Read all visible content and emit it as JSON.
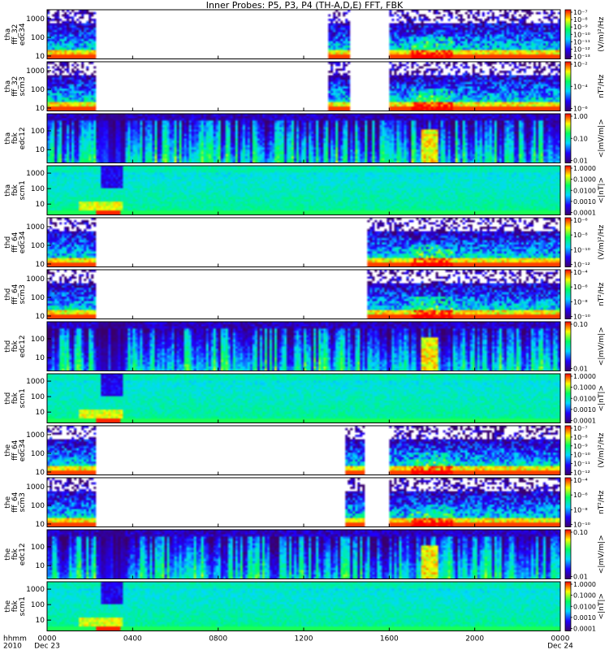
{
  "chart_data": {
    "type": "heatmap",
    "title": "Inner Probes: P5, P3, P4 (TH-A,D,E) FFT, FBK",
    "x_axis": {
      "label_lines": [
        "hhmm",
        "2010"
      ],
      "ticks": [
        {
          "hours": 0,
          "text": "0000",
          "sub": "Dec 23"
        },
        {
          "hours": 4,
          "text": "0400",
          "sub": ""
        },
        {
          "hours": 8,
          "text": "0800",
          "sub": ""
        },
        {
          "hours": 12,
          "text": "1200",
          "sub": ""
        },
        {
          "hours": 16,
          "text": "1600",
          "sub": ""
        },
        {
          "hours": 20,
          "text": "2000",
          "sub": ""
        },
        {
          "hours": 24,
          "text": "0000",
          "sub": "Dec 24"
        }
      ],
      "range_hours": [
        0,
        24
      ]
    },
    "colormap": [
      "#3a006a",
      "#2000ff",
      "#00d8ff",
      "#00ff60",
      "#ffff00",
      "#ff0000"
    ],
    "panels": [
      {
        "ylabel": [
          "tha",
          "fff_32",
          "edc34"
        ],
        "yticks": [
          "1000",
          "100",
          "10"
        ],
        "y_range": [
          7,
          3000
        ],
        "cbar_label": "(V/m)²/Hz",
        "cbar_ticks": [
          "10⁻⁷",
          "10⁻⁸",
          "10⁻⁹",
          "10⁻¹⁰",
          "10⁻¹¹",
          "10⁻¹²",
          "10⁻¹³"
        ],
        "kind": "fft",
        "coverage_hours": [
          [
            0,
            2.3
          ],
          [
            13.1,
            14.2
          ],
          [
            16.0,
            24.0
          ]
        ]
      },
      {
        "ylabel": [
          "tha",
          "fff_32",
          "scm3"
        ],
        "yticks": [
          "1000",
          "100",
          "10"
        ],
        "y_range": [
          7,
          3000
        ],
        "cbar_label": "nT²/Hz",
        "cbar_ticks": [
          "10⁻²",
          "10⁻⁴",
          "10⁻⁶"
        ],
        "kind": "fft",
        "coverage_hours": [
          [
            0,
            2.3
          ],
          [
            13.1,
            14.2
          ],
          [
            16.0,
            24.0
          ]
        ]
      },
      {
        "ylabel": [
          "tha",
          "fbk",
          "edc12"
        ],
        "yticks": [
          "100",
          "10"
        ],
        "y_range": [
          2,
          800
        ],
        "cbar_label": "<|mV/m|>",
        "cbar_ticks": [
          "1.00",
          "0.10",
          "0.01"
        ],
        "kind": "fbk_e",
        "coverage_hours": [
          [
            0,
            24
          ]
        ]
      },
      {
        "ylabel": [
          "tha",
          "fbk",
          "scm1"
        ],
        "yticks": [
          "1000",
          "100",
          "10"
        ],
        "y_range": [
          2,
          3000
        ],
        "cbar_label": "<|nT|>",
        "cbar_ticks": [
          "1.0000",
          "0.1000",
          "0.0100",
          "0.0010",
          "0.0001"
        ],
        "kind": "fbk_b",
        "coverage_hours": [
          [
            0,
            24
          ]
        ]
      },
      {
        "ylabel": [
          "thd",
          "fff_64",
          "edc34"
        ],
        "yticks": [
          "1000",
          "100",
          "10"
        ],
        "y_range": [
          7,
          3000
        ],
        "cbar_label": "(V/m)²/Hz",
        "cbar_ticks": [
          "10⁻⁶",
          "10⁻⁸",
          "10⁻¹⁰",
          "10⁻¹²"
        ],
        "kind": "fft",
        "coverage_hours": [
          [
            0,
            2.3
          ],
          [
            15.0,
            24.0
          ]
        ]
      },
      {
        "ylabel": [
          "thd",
          "fff_64",
          "scm3"
        ],
        "yticks": [
          "1000",
          "100",
          "10"
        ],
        "y_range": [
          7,
          3000
        ],
        "cbar_label": "nT²/Hz",
        "cbar_ticks": [
          "10⁻⁴",
          "10⁻⁶",
          "10⁻⁸",
          "10⁻¹⁰"
        ],
        "kind": "fft",
        "coverage_hours": [
          [
            0,
            2.3
          ],
          [
            15.0,
            24.0
          ]
        ]
      },
      {
        "ylabel": [
          "thd",
          "fbk",
          "edc12"
        ],
        "yticks": [
          "100",
          "10"
        ],
        "y_range": [
          2,
          800
        ],
        "cbar_label": "<|mV/m|>",
        "cbar_ticks": [
          "0.10",
          "0.01"
        ],
        "kind": "fbk_e",
        "coverage_hours": [
          [
            0,
            24
          ]
        ]
      },
      {
        "ylabel": [
          "thd",
          "fbk",
          "scm1"
        ],
        "yticks": [
          "1000",
          "100",
          "10"
        ],
        "y_range": [
          2,
          3000
        ],
        "cbar_label": "<|nT|>",
        "cbar_ticks": [
          "1.0000",
          "0.1000",
          "0.0100",
          "0.0010",
          "0.0001"
        ],
        "kind": "fbk_b",
        "coverage_hours": [
          [
            0,
            24
          ]
        ]
      },
      {
        "ylabel": [
          "the",
          "fff_64",
          "edc34"
        ],
        "yticks": [
          "1000",
          "100",
          "10"
        ],
        "y_range": [
          7,
          3000
        ],
        "cbar_label": "(V/m)²/Hz",
        "cbar_ticks": [
          "10⁻⁷",
          "10⁻⁸",
          "10⁻⁹",
          "10⁻¹⁰",
          "10⁻¹¹",
          "10⁻¹²"
        ],
        "kind": "fft",
        "coverage_hours": [
          [
            0,
            2.3
          ],
          [
            13.9,
            14.9
          ],
          [
            16.0,
            24.0
          ]
        ]
      },
      {
        "ylabel": [
          "the",
          "fff_64",
          "scm3"
        ],
        "yticks": [
          "1000",
          "100",
          "10"
        ],
        "y_range": [
          7,
          3000
        ],
        "cbar_label": "nT²/Hz",
        "cbar_ticks": [
          "10⁻⁴",
          "10⁻⁶",
          "10⁻⁸",
          "10⁻¹⁰"
        ],
        "kind": "fft",
        "coverage_hours": [
          [
            0,
            2.3
          ],
          [
            13.9,
            14.9
          ],
          [
            16.0,
            24.0
          ]
        ]
      },
      {
        "ylabel": [
          "the",
          "fbk",
          "edc12"
        ],
        "yticks": [
          "100",
          "10"
        ],
        "y_range": [
          2,
          800
        ],
        "cbar_label": "<|mV/m|>",
        "cbar_ticks": [
          "0.10",
          "0.01"
        ],
        "kind": "fbk_e",
        "coverage_hours": [
          [
            0,
            24
          ]
        ]
      },
      {
        "ylabel": [
          "the",
          "fbk",
          "scm1"
        ],
        "yticks": [
          "1000",
          "100",
          "10"
        ],
        "y_range": [
          2,
          3000
        ],
        "cbar_label": "<|nT|>",
        "cbar_ticks": [
          "1.0000",
          "0.1000",
          "0.0100",
          "0.0010",
          "0.0001"
        ],
        "kind": "fbk_b",
        "coverage_hours": [
          [
            0,
            24
          ]
        ]
      }
    ]
  }
}
